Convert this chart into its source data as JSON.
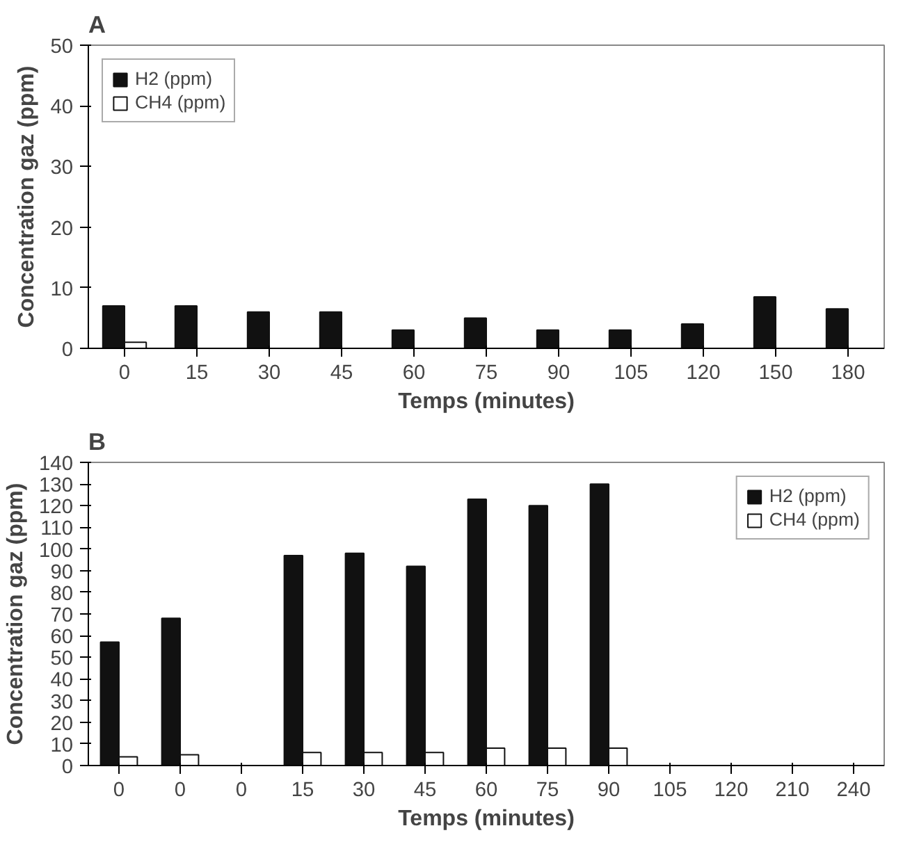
{
  "chart_data": [
    {
      "type": "bar",
      "title": "A",
      "xlabel": "Temps (minutes)",
      "ylabel": "Concentration gaz (ppm)",
      "categories": [
        "0",
        "15",
        "30",
        "45",
        "60",
        "75",
        "90",
        "105",
        "120",
        "150",
        "180"
      ],
      "series": [
        {
          "name": "H2 (ppm)",
          "color": "#111111",
          "values": [
            7,
            7,
            6,
            6,
            3,
            5,
            3,
            3,
            4,
            8.5,
            6.5
          ]
        },
        {
          "name": "CH4 (ppm)",
          "color": "#ffffff",
          "values": [
            1,
            null,
            null,
            null,
            null,
            null,
            null,
            null,
            null,
            null,
            null
          ]
        }
      ],
      "ylim": [
        0,
        50
      ],
      "yticks": [
        0,
        10,
        20,
        30,
        40,
        50
      ],
      "legend": "top left",
      "grid": false
    },
    {
      "type": "bar",
      "title": "B",
      "xlabel": "Temps (minutes)",
      "ylabel": "Concentration gaz (ppm)",
      "categories": [
        "0",
        "0",
        "0",
        "15",
        "30",
        "45",
        "60",
        "75",
        "90",
        "105",
        "120",
        "210",
        "240"
      ],
      "series": [
        {
          "name": "H2 (ppm)",
          "color": "#111111",
          "values": [
            57,
            68,
            null,
            97,
            98,
            92,
            123,
            120,
            130,
            null,
            null,
            null,
            null
          ]
        },
        {
          "name": "CH4 (ppm)",
          "color": "#ffffff",
          "values": [
            4,
            5,
            null,
            6,
            6,
            6,
            8,
            8,
            8,
            null,
            null,
            null,
            null
          ]
        }
      ],
      "ylim": [
        0,
        140
      ],
      "yticks": [
        0,
        10,
        20,
        30,
        40,
        50,
        60,
        70,
        80,
        90,
        100,
        110,
        120,
        130,
        140
      ],
      "legend": "top right",
      "grid": false
    }
  ]
}
